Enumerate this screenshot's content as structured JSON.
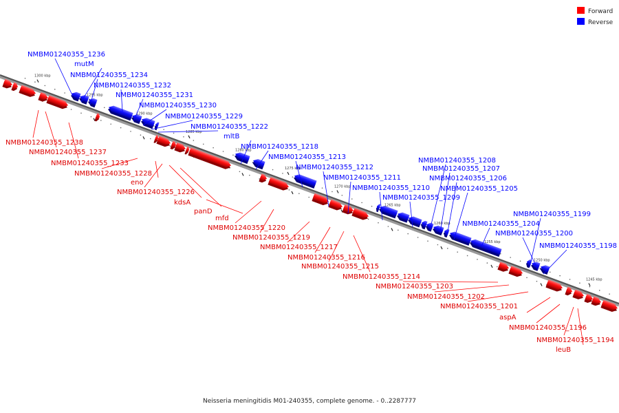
{
  "legend": [
    {
      "label": "Forward",
      "color": "#ff0000"
    },
    {
      "label": "Reverse",
      "color": "#0000ff"
    }
  ],
  "caption": "Neisseria meningitidis M01-240355, complete genome. - 0..2287777",
  "ticks": [
    {
      "label": "1300 kbp"
    },
    {
      "label": "1295 kbp"
    },
    {
      "label": "1290 kbp"
    },
    {
      "label": "1285 kbp"
    },
    {
      "label": "1280 kbp"
    },
    {
      "label": "1275 kbp"
    },
    {
      "label": "1270 kbp"
    },
    {
      "label": "1265 kbp"
    },
    {
      "label": "1260 kbp"
    },
    {
      "label": "1255 kbp"
    },
    {
      "label": "1250 kbp"
    },
    {
      "label": "1245 kbp"
    }
  ],
  "forward_genes": [
    "NMBM01240355_1238",
    "NMBM01240355_1237",
    "NMBM01240355_1233",
    "NMBM01240355_1228",
    "eno",
    "NMBM01240355_1226",
    "kdsA",
    "panD",
    "mfd",
    "NMBM01240355_1220",
    "NMBM01240355_1219",
    "NMBM01240355_1217",
    "NMBM01240355_1216",
    "NMBM01240355_1215",
    "NMBM01240355_1214",
    "NMBM01240355_1203",
    "NMBM01240355_1202",
    "NMBM01240355_1201",
    "aspA",
    "NMBM01240355_1196",
    "NMBM01240355_1194",
    "leuB"
  ],
  "reverse_genes": [
    "NMBM01240355_1236",
    "mutM",
    "NMBM01240355_1234",
    "NMBM01240355_1232",
    "NMBM01240355_1231",
    "NMBM01240355_1230",
    "NMBM01240355_1229",
    "NMBM01240355_1222",
    "mltB",
    "NMBM01240355_1218",
    "NMBM01240355_1213",
    "NMBM01240355_1212",
    "NMBM01240355_1211",
    "NMBM01240355_1210",
    "NMBM01240355_1209",
    "NMBM01240355_1208",
    "NMBM01240355_1207",
    "NMBM01240355_1206",
    "NMBM01240355_1205",
    "NMBM01240355_1204",
    "NMBM01240355_1199",
    "NMBM01240355_1200",
    "NMBM01240355_1198"
  ]
}
